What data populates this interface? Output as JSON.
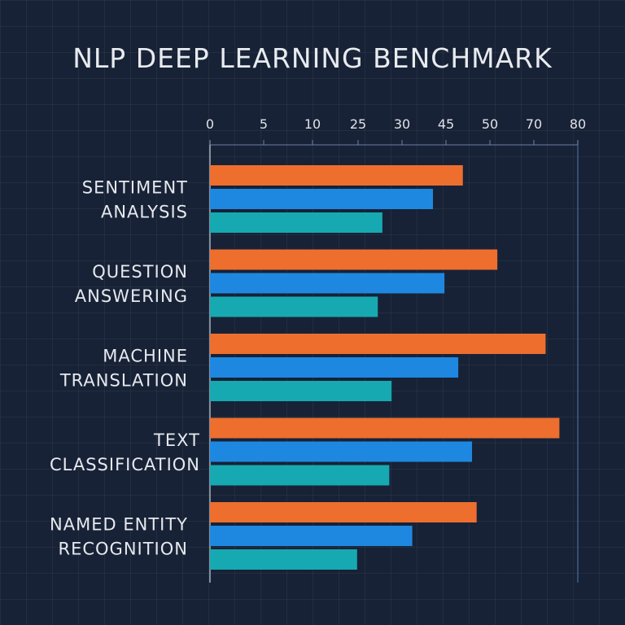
{
  "chart_data": {
    "type": "bar",
    "orientation": "horizontal",
    "title": "NLP DEEP LEARNING BENCHMARK",
    "xlabel": "",
    "ylabel": "",
    "xlim": [
      0,
      80
    ],
    "x_tick_labels": [
      "0",
      "5",
      "10",
      "25",
      "30",
      "45",
      "50",
      "70",
      "80"
    ],
    "categories": [
      [
        "SENTIMENT",
        "ANALYSIS"
      ],
      [
        "QUESTION",
        "ANSWERING"
      ],
      [
        "MACHINE",
        "TRANSLATION"
      ],
      [
        "TEXT",
        "CLASSIFICATION"
      ],
      [
        "NAMED ENTITY",
        "RECOGNITION"
      ]
    ],
    "series": [
      {
        "color": "#ee6e2e",
        "values": [
          55,
          62.5,
          73,
          76,
          58
        ]
      },
      {
        "color": "#1e88e0",
        "values": [
          48.5,
          51,
          54,
          57,
          44
        ]
      },
      {
        "color": "#16a9b2",
        "values": [
          37.5,
          36.5,
          39.5,
          39,
          32
        ]
      }
    ],
    "grid": true,
    "legend": "none"
  }
}
